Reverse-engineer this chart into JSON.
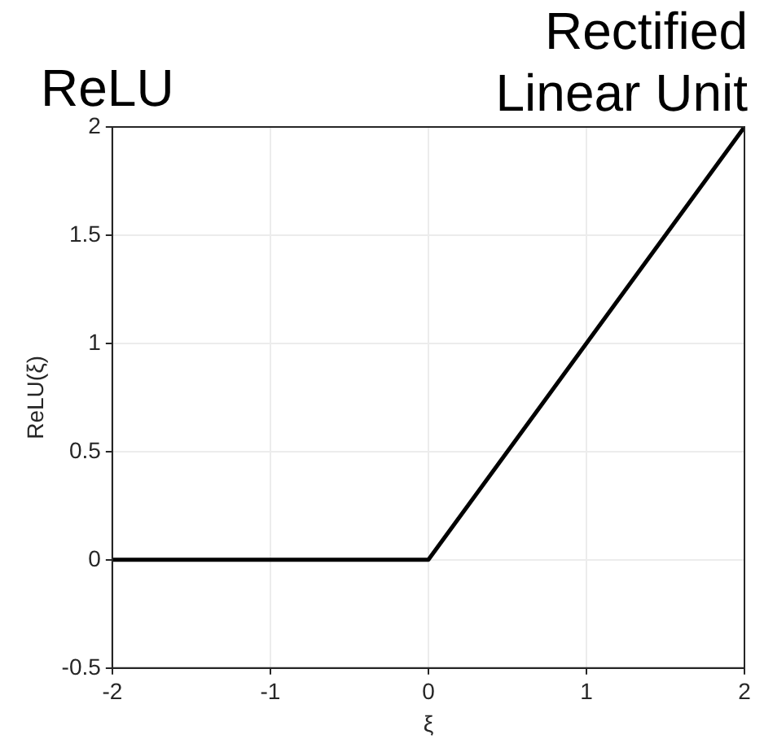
{
  "chart_data": {
    "type": "line",
    "title": "ReLU",
    "subtitle": "Rectified Linear Unit",
    "xlabel": "ξ",
    "ylabel": "ReLU(ξ)",
    "x": [
      -2,
      0,
      2
    ],
    "series": [
      {
        "color": "#000000",
        "values": [
          0,
          0,
          2
        ]
      }
    ],
    "xlim": [
      -2,
      2
    ],
    "xticks": [
      -2,
      -1,
      0,
      1,
      2
    ],
    "ylim": [
      -0.5,
      2
    ],
    "yticks": [
      -0.5,
      0,
      0.5,
      1,
      1.5,
      2
    ],
    "grid": true,
    "legend": false,
    "marker": "none",
    "line_style": "solid"
  }
}
